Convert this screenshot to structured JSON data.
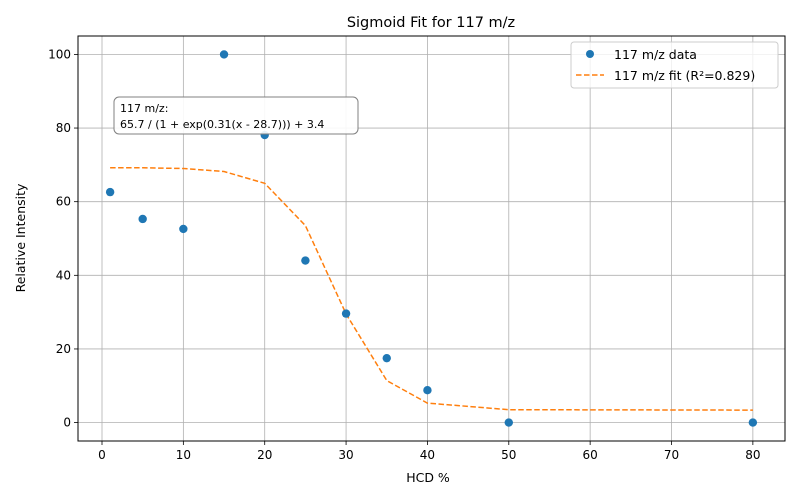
{
  "chart_data": {
    "type": "scatter",
    "title": "Sigmoid Fit for 117 m/z",
    "xlabel": "HCD %",
    "ylabel": "Relative Intensity",
    "xlim": [
      -2.95,
      83.95
    ],
    "ylim": [
      -5,
      105
    ],
    "xticks": [
      0,
      10,
      20,
      30,
      40,
      50,
      60,
      70,
      80
    ],
    "yticks": [
      0,
      20,
      40,
      60,
      80,
      100
    ],
    "grid": true,
    "legend_position": "top-right",
    "colors": {
      "data": "#1f77b4",
      "fit": "#ff7f0e"
    },
    "series": [
      {
        "name": "117 m/z data",
        "style": "markers",
        "x": [
          1,
          5,
          10,
          15,
          20,
          25,
          30,
          35,
          40,
          50,
          80
        ],
        "y": [
          62.6,
          55.3,
          52.6,
          100,
          78.1,
          44,
          29.6,
          17.5,
          8.8,
          0,
          0
        ]
      },
      {
        "name": "117 m/z fit (R²=0.829)",
        "style": "dashed-line",
        "x": [
          1,
          5,
          10,
          15,
          20,
          25,
          30,
          35,
          40,
          50,
          80
        ],
        "y": [
          69.2,
          69.2,
          69.0,
          68.2,
          65.0,
          53.5,
          29.5,
          11.4,
          5.3,
          3.5,
          3.4
        ]
      }
    ],
    "annotation": {
      "lines": [
        "117 m/z:",
        "65.7 / (1 + exp(0.31(x - 28.7))) + 3.4"
      ]
    }
  }
}
